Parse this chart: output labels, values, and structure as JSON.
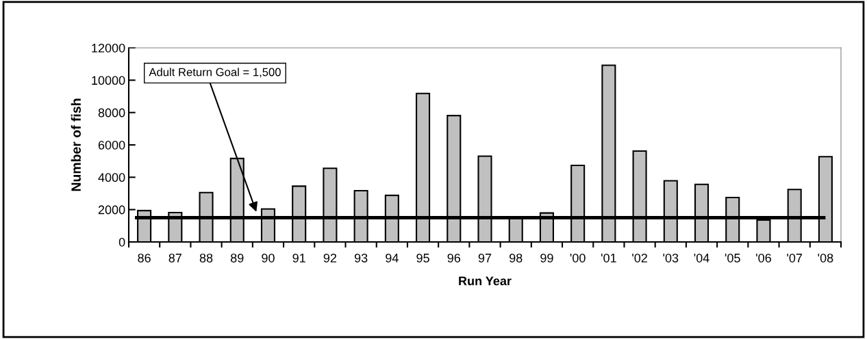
{
  "chart_data": {
    "type": "bar",
    "xlabel": "Run Year",
    "ylabel": "Number of fish",
    "categories": [
      "86",
      "87",
      "88",
      "89",
      "90",
      "91",
      "92",
      "93",
      "94",
      "95",
      "96",
      "97",
      "98",
      "99",
      "'00",
      "'01",
      "'02",
      "'03",
      "'04",
      "'05",
      "'06",
      "'07",
      "'08"
    ],
    "values": [
      1940,
      1820,
      3050,
      5160,
      2040,
      3450,
      4550,
      3170,
      2880,
      9180,
      7810,
      5300,
      1450,
      1790,
      4730,
      10920,
      5620,
      3780,
      3560,
      2750,
      1350,
      3240,
      5270
    ],
    "color": "#c0c0c0",
    "ylim": [
      0,
      12000
    ],
    "yticks": [
      0,
      2000,
      4000,
      6000,
      8000,
      10000,
      12000
    ],
    "grid": false,
    "legend": false,
    "ref_lines": [
      {
        "axis": "y",
        "value": 1500,
        "label": "Adult Return Goal = 1,500",
        "color": "#000000"
      }
    ]
  }
}
